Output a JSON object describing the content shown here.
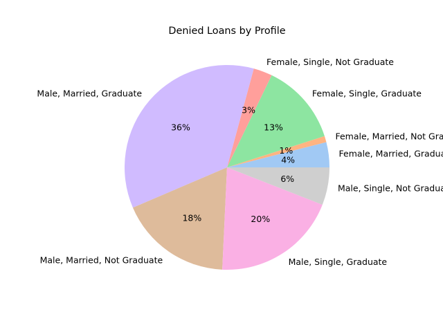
{
  "chart_data": {
    "type": "pie",
    "title": "Denied Loans by Profile",
    "slices": [
      {
        "label": "Female, Married, Graduate",
        "value": 4,
        "pct_label": "4%",
        "color": "#a1c9f4"
      },
      {
        "label": "Female, Married, Not Graduate",
        "value": 1,
        "pct_label": "1%",
        "color": "#ffb482"
      },
      {
        "label": "Female, Single, Graduate",
        "value": 13,
        "pct_label": "13%",
        "color": "#8de5a1"
      },
      {
        "label": "Female, Single, Not Graduate",
        "value": 3,
        "pct_label": "3%",
        "color": "#ff9f9b"
      },
      {
        "label": "Male, Married, Graduate",
        "value": 36,
        "pct_label": "36%",
        "color": "#d0bbff"
      },
      {
        "label": "Male, Married, Not Graduate",
        "value": 18,
        "pct_label": "18%",
        "color": "#debb9b"
      },
      {
        "label": "Male, Single, Graduate",
        "value": 20,
        "pct_label": "20%",
        "color": "#fab0e4"
      },
      {
        "label": "Male, Single, Not Graduate",
        "value": 6,
        "pct_label": "6%",
        "color": "#cfcfcf"
      }
    ],
    "start_angle_deg": 0,
    "direction": "counterclockwise",
    "legend": "none"
  }
}
